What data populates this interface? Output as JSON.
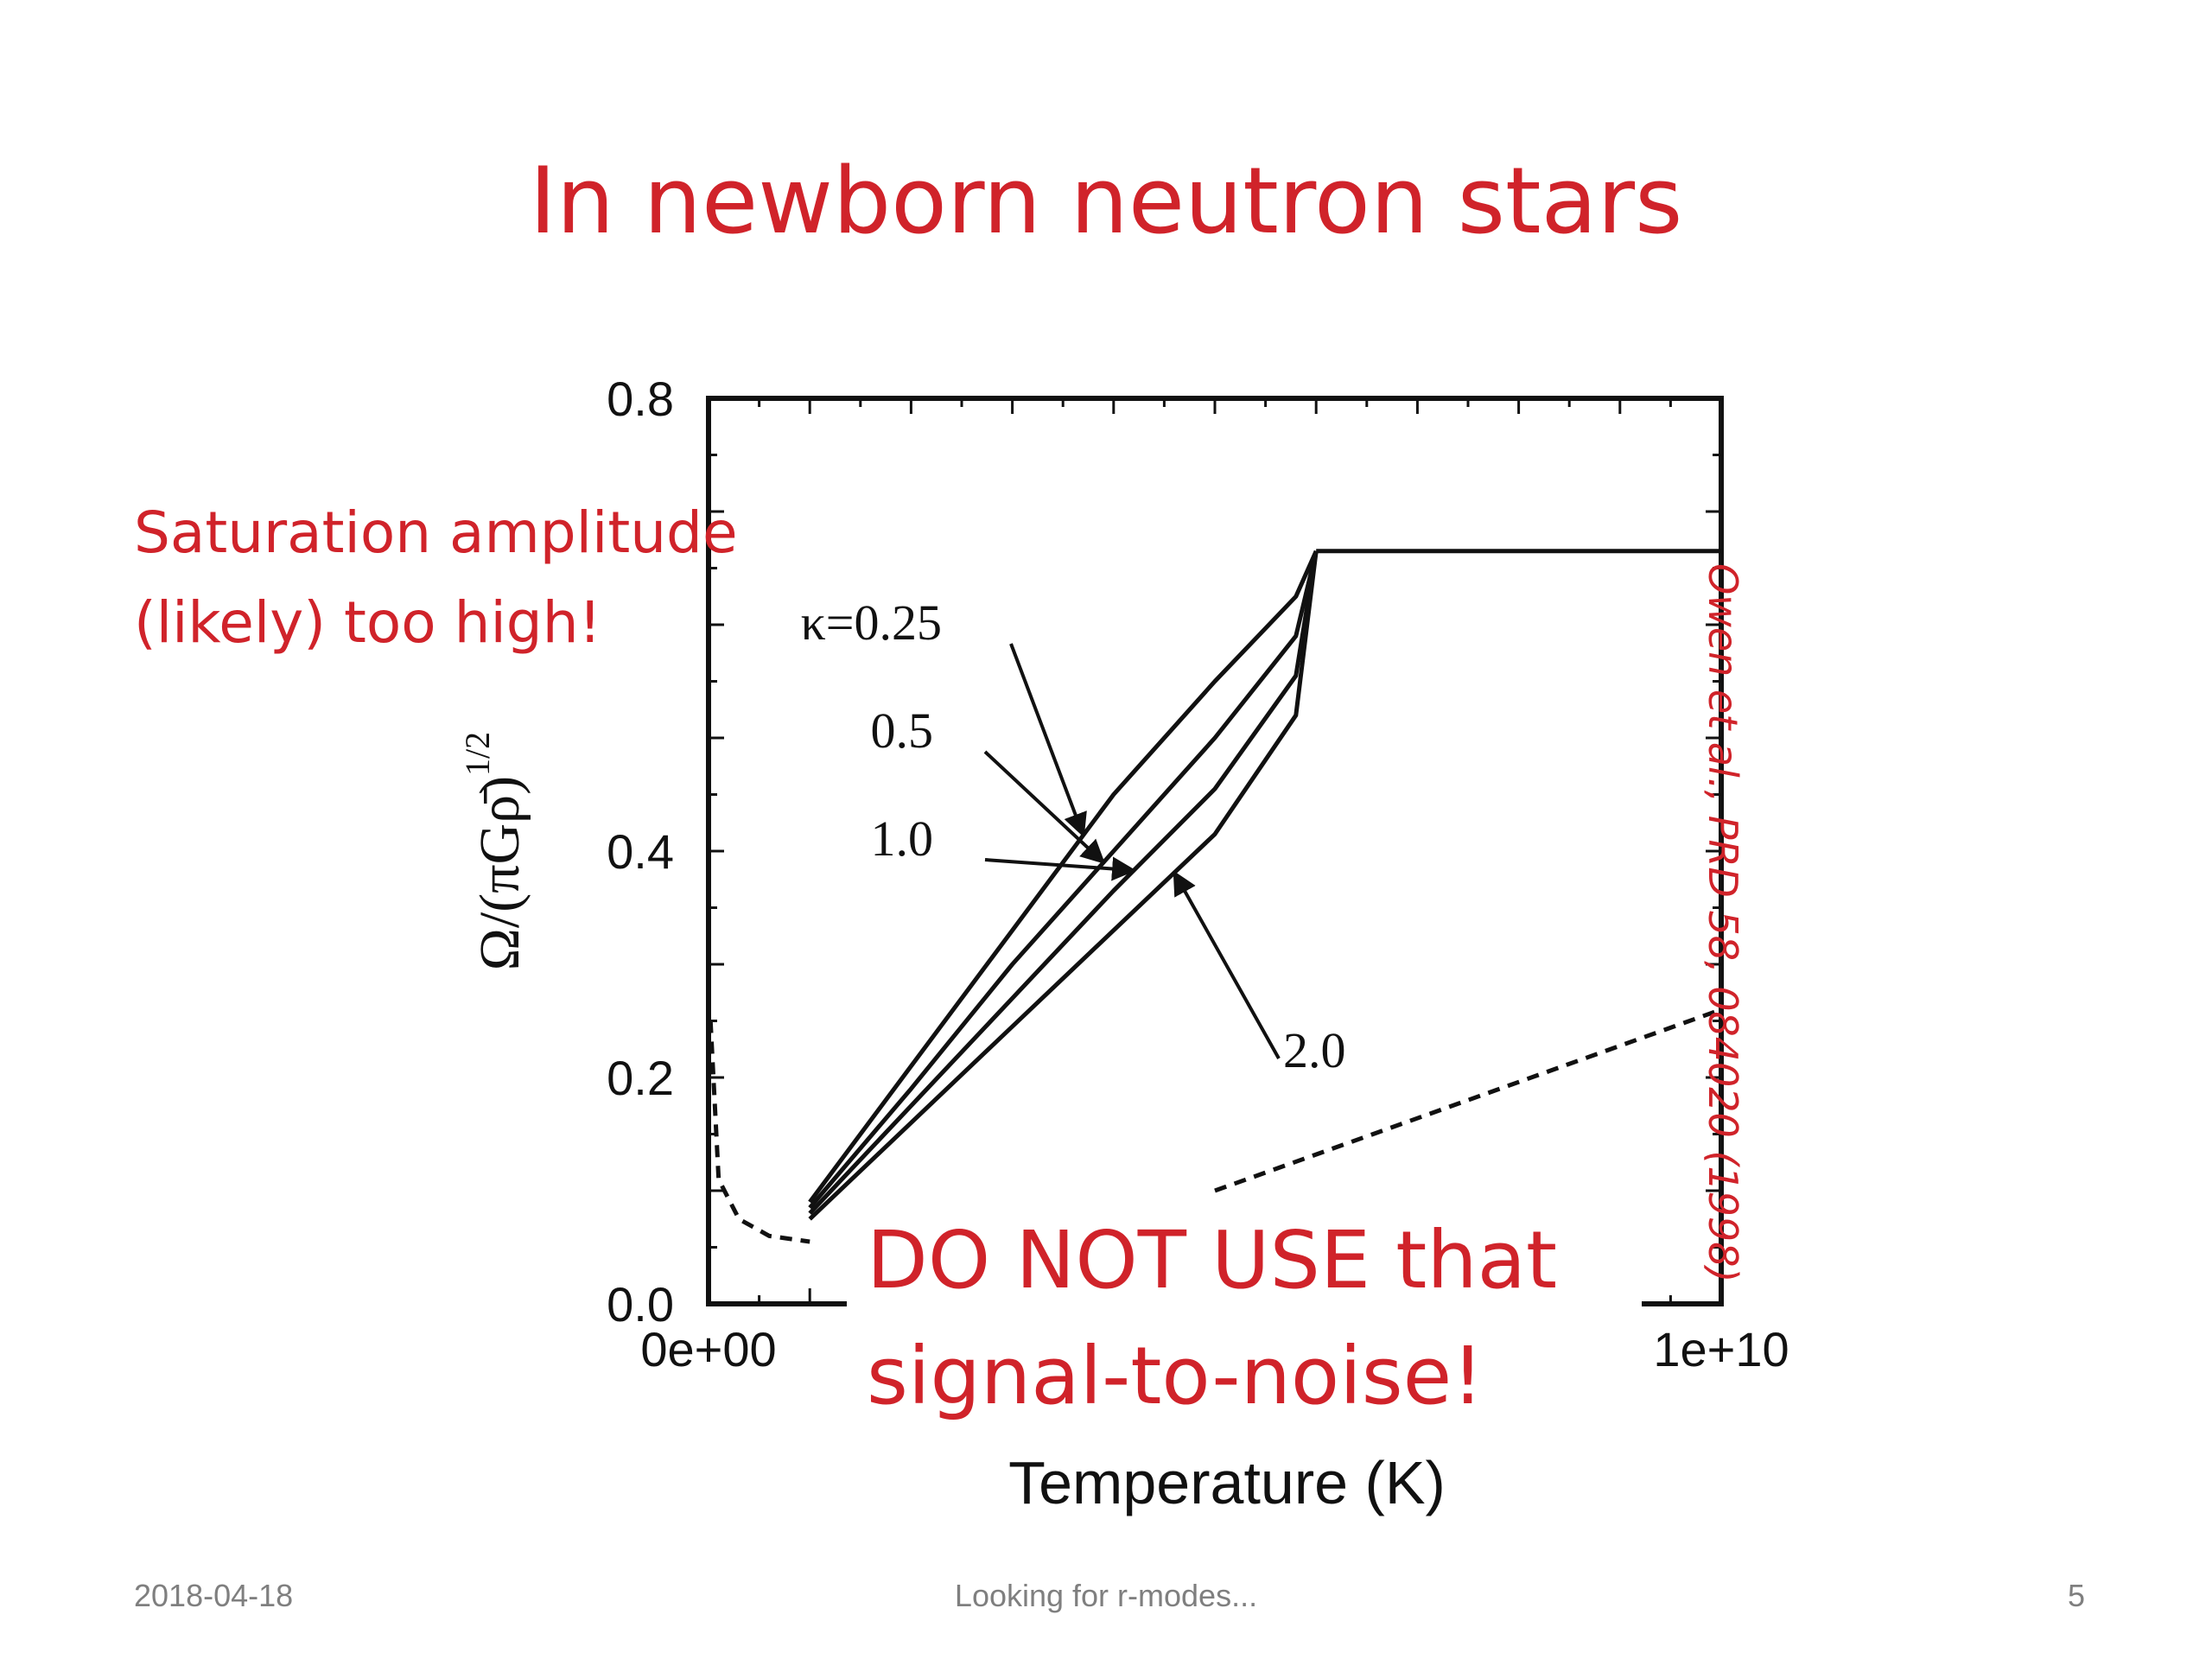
{
  "slide": {
    "title": "In newborn neutron stars",
    "note_lines": [
      "Saturation amplitude",
      "(likely) too high!"
    ],
    "citation": "Owen et al., PRD 58, 084020 (1998)",
    "warning_lines": [
      "DO NOT USE that",
      "signal-to-noise!"
    ],
    "footer": {
      "date": "2018-04-18",
      "center": "Looking for r-modes...",
      "page": "5"
    },
    "accent_color": "#d0232a"
  },
  "chart_data": {
    "type": "line",
    "xlabel": "Temperature (K)",
    "ylabel": "Ω/(πGρ̄)",
    "ylabel_superscript": "1/2",
    "xlim": [
      0,
      10000000000
    ],
    "ylim": [
      0,
      0.8
    ],
    "x_ticks": [
      {
        "value": 0,
        "label": "0e+00"
      },
      {
        "value": 10000000000,
        "label": "1e+10"
      }
    ],
    "y_ticks": [
      {
        "value": 0,
        "label": "0.0"
      },
      {
        "value": 0.2,
        "label": "0.2"
      },
      {
        "value": 0.4,
        "label": "0.4"
      },
      {
        "value": 0.8,
        "label": "0.8"
      }
    ],
    "saturation_level": 0.665,
    "series": [
      {
        "name": "κ=0.25",
        "x": [
          1000000000,
          2000000000,
          3000000000,
          4000000000,
          5000000000,
          5800000000,
          6000000000
        ],
        "y": [
          0.09,
          0.21,
          0.33,
          0.45,
          0.55,
          0.625,
          0.665
        ],
        "style": "solid"
      },
      {
        "name": "0.5",
        "x": [
          1000000000,
          2000000000,
          3000000000,
          4000000000,
          5000000000,
          5800000000,
          6000000000
        ],
        "y": [
          0.085,
          0.19,
          0.3,
          0.4,
          0.5,
          0.59,
          0.665
        ],
        "style": "solid"
      },
      {
        "name": "1.0",
        "x": [
          1000000000,
          2000000000,
          3000000000,
          4000000000,
          5000000000,
          5800000000,
          6000000000
        ],
        "y": [
          0.08,
          0.175,
          0.27,
          0.365,
          0.455,
          0.555,
          0.665
        ],
        "style": "solid"
      },
      {
        "name": "2.0",
        "x": [
          1000000000,
          2000000000,
          3000000000,
          4000000000,
          5000000000,
          5800000000,
          6000000000
        ],
        "y": [
          0.075,
          0.16,
          0.245,
          0.33,
          0.415,
          0.52,
          0.665
        ],
        "style": "solid"
      },
      {
        "name": "",
        "x": [
          6000000000,
          10000000000
        ],
        "y": [
          0.665,
          0.665
        ],
        "style": "solid"
      },
      {
        "name": "",
        "x": [
          20000000,
          100000000,
          300000000,
          600000000,
          1000000000
        ],
        "y": [
          0.25,
          0.11,
          0.075,
          0.06,
          0.055
        ],
        "style": "dashed"
      },
      {
        "name": "",
        "x": [
          5000000000,
          10000000000
        ],
        "y": [
          0.1,
          0.26
        ],
        "style": "dashed"
      }
    ],
    "annotations": [
      {
        "text": "κ=0.25",
        "target_series": 0
      },
      {
        "text": "0.5",
        "target_series": 1
      },
      {
        "text": "1.0",
        "target_series": 2
      },
      {
        "text": "2.0",
        "target_series": 3
      }
    ]
  }
}
